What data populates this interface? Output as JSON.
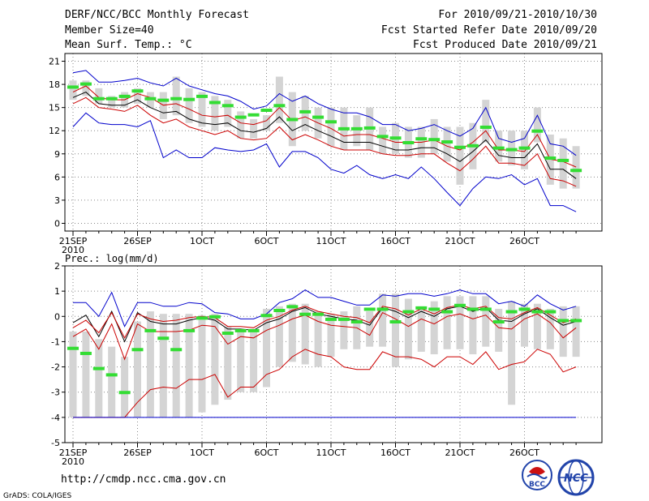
{
  "header": {
    "title": "DERF/NCC/BCC Monthly Forecast",
    "member_size": "Member Size=40",
    "variable": "Mean Surf. Temp.: °C",
    "forecast_period": "For 2010/09/21-2010/10/30",
    "refer_date": "Fcst Started Refer Date 2010/09/20",
    "produced_date": "Fcst Produced Date 2010/09/21"
  },
  "footer": {
    "url": "http://cmdp.ncc.cma.gov.cn",
    "credit": "GrADS: COLA/IGES",
    "logo_bcc_text": "BCC",
    "logo_ncc_text": "NCC"
  },
  "colors": {
    "max_line": "#0000cc",
    "min_line": "#0000cc",
    "spread_line": "#cc0000",
    "mean_line": "#000000",
    "box": "#d4d4d4",
    "marker": "#33dd33",
    "grid": "#888888"
  },
  "x_axis": {
    "tick_labels": [
      "21SEP",
      "26SEP",
      "1OCT",
      "6OCT",
      "11OCT",
      "16OCT",
      "21OCT",
      "26OCT"
    ],
    "tick_days": [
      0,
      5,
      10,
      15,
      20,
      25,
      30,
      35
    ],
    "year_label": "2010",
    "n_days": 40
  },
  "chart_data": [
    {
      "type": "line",
      "title": "Mean Surf. Temp.: °C",
      "ylim": [
        -1,
        22
      ],
      "yticks": [
        0,
        3,
        6,
        9,
        12,
        15,
        18,
        21
      ],
      "days": [
        0,
        1,
        2,
        3,
        4,
        5,
        6,
        7,
        8,
        9,
        10,
        11,
        12,
        13,
        14,
        15,
        16,
        17,
        18,
        19,
        20,
        21,
        22,
        23,
        24,
        25,
        26,
        27,
        28,
        29,
        30,
        31,
        32,
        33,
        34,
        35,
        36,
        37,
        38,
        39
      ],
      "series": [
        {
          "name": "max",
          "values": [
            19.5,
            19.8,
            18.3,
            18.3,
            18.5,
            18.8,
            18.2,
            17.8,
            18.8,
            17.8,
            17.3,
            16.8,
            16.5,
            15.8,
            14.8,
            15.2,
            16.8,
            15.8,
            16.5,
            15.5,
            14.8,
            14.3,
            14.3,
            13.8,
            12.8,
            12.8,
            12.0,
            12.3,
            12.8,
            12.0,
            11.3,
            12.3,
            15.0,
            11.0,
            10.5,
            11.0,
            14.0,
            10.3,
            10.0,
            8.8
          ]
        },
        {
          "name": "upper",
          "values": [
            17.0,
            17.8,
            16.3,
            16.0,
            16.0,
            16.8,
            16.3,
            15.3,
            15.5,
            14.8,
            14.0,
            13.8,
            14.0,
            13.0,
            12.8,
            13.3,
            15.0,
            13.3,
            13.8,
            13.0,
            12.3,
            11.3,
            11.5,
            11.5,
            11.0,
            10.5,
            10.5,
            10.5,
            10.8,
            10.0,
            9.5,
            10.5,
            12.0,
            9.5,
            9.5,
            9.3,
            11.5,
            8.3,
            8.0,
            7.3
          ]
        },
        {
          "name": "mean",
          "values": [
            16.3,
            17.0,
            15.5,
            15.3,
            15.3,
            16.0,
            15.0,
            14.3,
            14.5,
            13.5,
            13.0,
            12.8,
            13.0,
            12.0,
            11.8,
            12.3,
            13.8,
            12.0,
            12.8,
            12.0,
            11.3,
            10.5,
            10.5,
            10.5,
            10.0,
            9.5,
            9.5,
            9.8,
            9.8,
            9.0,
            8.0,
            9.3,
            10.8,
            8.8,
            8.5,
            8.5,
            10.3,
            7.0,
            7.0,
            5.8
          ]
        },
        {
          "name": "lower",
          "values": [
            15.5,
            16.3,
            15.0,
            14.8,
            14.5,
            15.3,
            14.0,
            13.0,
            13.5,
            12.5,
            12.0,
            11.5,
            12.0,
            11.0,
            10.8,
            11.0,
            12.5,
            10.8,
            11.5,
            10.8,
            10.0,
            9.5,
            9.5,
            9.5,
            9.0,
            8.8,
            8.8,
            9.0,
            9.0,
            7.8,
            6.8,
            8.3,
            10.0,
            7.8,
            7.8,
            7.5,
            9.0,
            5.8,
            5.5,
            4.8
          ]
        },
        {
          "name": "min",
          "values": [
            12.5,
            14.3,
            13.0,
            12.8,
            12.8,
            12.5,
            13.3,
            8.5,
            9.5,
            8.5,
            8.5,
            9.8,
            9.5,
            9.3,
            9.5,
            10.3,
            7.3,
            9.3,
            9.3,
            8.5,
            7.0,
            6.5,
            7.5,
            6.3,
            5.8,
            6.3,
            5.8,
            7.3,
            5.8,
            4.0,
            2.3,
            4.5,
            6.0,
            5.8,
            6.3,
            5.0,
            5.8,
            2.3,
            2.3,
            1.5
          ]
        }
      ],
      "boxes": {
        "low": [
          16.0,
          16.5,
          15.5,
          15.0,
          15.0,
          15.5,
          15.0,
          13.5,
          14.0,
          13.0,
          12.5,
          12.0,
          12.5,
          11.0,
          11.0,
          12.0,
          13.0,
          10.0,
          12.0,
          11.0,
          10.0,
          9.5,
          10.0,
          9.5,
          9.0,
          9.0,
          8.5,
          8.5,
          9.0,
          8.0,
          5.0,
          7.0,
          10.5,
          8.0,
          7.5,
          7.0,
          10.5,
          5.0,
          4.5,
          4.5
        ],
        "high": [
          18.5,
          18.5,
          17.5,
          16.5,
          17.0,
          17.5,
          17.0,
          17.0,
          19.0,
          17.5,
          17.0,
          16.5,
          16.0,
          14.5,
          13.5,
          14.0,
          19.0,
          17.0,
          16.5,
          15.0,
          15.0,
          15.0,
          14.0,
          15.0,
          12.5,
          13.0,
          12.5,
          12.5,
          13.5,
          12.5,
          12.5,
          13.0,
          16.0,
          12.0,
          12.0,
          12.0,
          15.0,
          11.5,
          11.0,
          10.0
        ]
      },
      "markers": [
        17.7,
        18.1,
        16.2,
        16.2,
        16.5,
        17.2,
        16.2,
        16.0,
        16.2,
        16.1,
        16.5,
        15.7,
        15.3,
        13.8,
        14.1,
        14.7,
        15.3,
        13.5,
        14.5,
        13.8,
        13.2,
        12.3,
        12.3,
        12.4,
        11.3,
        11.1,
        10.5,
        11.0,
        10.9,
        10.6,
        9.9,
        10.1,
        12.5,
        9.8,
        9.6,
        9.8,
        12.0,
        8.5,
        8.2,
        6.9
      ]
    },
    {
      "type": "line",
      "title": "Prec.: log(mm/d)",
      "ylim": [
        -5,
        2
      ],
      "yticks": [
        -5,
        -4,
        -3,
        -2,
        -1,
        0,
        1,
        2
      ],
      "days": [
        0,
        1,
        2,
        3,
        4,
        5,
        6,
        7,
        8,
        9,
        10,
        11,
        12,
        13,
        14,
        15,
        16,
        17,
        18,
        19,
        20,
        21,
        22,
        23,
        24,
        25,
        26,
        27,
        28,
        29,
        30,
        31,
        32,
        33,
        34,
        35,
        36,
        37,
        38,
        39
      ],
      "series": [
        {
          "name": "max",
          "values": [
            0.55,
            0.55,
            0.0,
            0.95,
            -0.4,
            0.55,
            0.55,
            0.4,
            0.4,
            0.55,
            0.5,
            0.15,
            0.1,
            -0.1,
            -0.1,
            0.1,
            0.55,
            0.7,
            1.05,
            0.75,
            0.75,
            0.6,
            0.45,
            0.45,
            0.85,
            0.8,
            0.9,
            0.9,
            0.8,
            0.9,
            1.05,
            0.9,
            0.9,
            0.5,
            0.6,
            0.4,
            0.85,
            0.5,
            0.25,
            0.4
          ]
        },
        {
          "name": "mean",
          "values": [
            -0.25,
            0.05,
            -0.8,
            0.2,
            -1.0,
            0.15,
            -0.2,
            -0.3,
            -0.3,
            -0.15,
            -0.05,
            -0.15,
            -0.5,
            -0.5,
            -0.55,
            -0.25,
            -0.1,
            0.2,
            0.35,
            0.1,
            0.0,
            -0.1,
            -0.15,
            -0.35,
            0.35,
            0.2,
            -0.05,
            0.2,
            0.0,
            0.3,
            0.4,
            0.2,
            0.35,
            -0.15,
            -0.2,
            0.1,
            0.3,
            -0.05,
            -0.35,
            -0.2
          ]
        },
        {
          "name": "upper",
          "values": [
            -0.45,
            -0.15,
            -0.65,
            0.15,
            -0.85,
            0.1,
            -0.1,
            -0.2,
            -0.15,
            -0.05,
            0.0,
            -0.05,
            -0.4,
            -0.4,
            -0.45,
            -0.15,
            0.0,
            0.25,
            0.4,
            0.2,
            0.1,
            0.0,
            -0.05,
            -0.25,
            0.4,
            0.3,
            0.05,
            0.3,
            0.1,
            0.35,
            0.45,
            0.3,
            0.4,
            -0.05,
            -0.1,
            0.15,
            0.35,
            0.05,
            -0.25,
            -0.1
          ]
        },
        {
          "name": "lower",
          "values": [
            -0.8,
            -0.5,
            -1.3,
            -0.3,
            -1.7,
            -0.3,
            -0.6,
            -0.6,
            -0.6,
            -0.55,
            -0.35,
            -0.4,
            -1.1,
            -0.8,
            -0.85,
            -0.55,
            -0.35,
            -0.1,
            0.05,
            -0.2,
            -0.35,
            -0.4,
            -0.45,
            -0.75,
            0.15,
            -0.1,
            -0.4,
            -0.1,
            -0.3,
            0.0,
            0.1,
            -0.1,
            0.05,
            -0.45,
            -0.5,
            -0.1,
            0.1,
            -0.25,
            -0.85,
            -0.45
          ]
        },
        {
          "name": "low_spread",
          "values": [
            -4.0,
            -4.0,
            -4.0,
            -4.0,
            -4.0,
            -3.4,
            -2.9,
            -2.8,
            -2.85,
            -2.5,
            -2.5,
            -2.3,
            -3.2,
            -2.8,
            -2.8,
            -2.3,
            -2.1,
            -1.6,
            -1.3,
            -1.5,
            -1.6,
            -2.0,
            -2.1,
            -2.1,
            -1.4,
            -1.6,
            -1.6,
            -1.7,
            -2.0,
            -1.6,
            -1.6,
            -1.9,
            -1.4,
            -2.1,
            -1.9,
            -1.8,
            -1.3,
            -1.5,
            -2.2,
            -2.0
          ]
        },
        {
          "name": "min",
          "values": [
            -4.0,
            -4.0,
            -4.0,
            -4.0,
            -4.0,
            -4.0,
            -4.0,
            -4.0,
            -4.0,
            -4.0,
            -4.0,
            -4.0,
            -4.0,
            -4.0,
            -4.0,
            -4.0,
            -4.0,
            -4.0,
            -4.0,
            -4.0,
            -4.0,
            -4.0,
            -4.0,
            -4.0,
            -4.0,
            -4.0,
            -4.0,
            -4.0,
            -4.0,
            -4.0,
            -4.0,
            -4.0,
            -4.0,
            -4.0,
            -4.0,
            -4.0,
            -4.0,
            -4.0,
            -4.0,
            -4.0
          ]
        }
      ],
      "boxes": {
        "low": [
          -4.0,
          -4.0,
          -4.0,
          -4.0,
          -4.0,
          -4.0,
          -4.0,
          -4.0,
          -4.0,
          -4.0,
          -3.8,
          -3.5,
          -3.3,
          -3.0,
          -3.0,
          -2.8,
          -2.0,
          -1.8,
          -1.9,
          -2.0,
          -1.6,
          -1.3,
          -1.3,
          -1.2,
          -1.2,
          -2.0,
          -1.7,
          -1.4,
          -1.5,
          -1.3,
          -1.3,
          -1.5,
          -1.2,
          -1.4,
          -3.5,
          -1.2,
          -1.3,
          -1.3,
          -1.6,
          -1.6
        ],
        "high": [
          -0.6,
          -0.6,
          -0.9,
          -1.2,
          -1.6,
          -0.2,
          0.2,
          0.1,
          0.1,
          0.1,
          0.05,
          0.1,
          -0.4,
          -0.6,
          -0.5,
          0.3,
          0.4,
          0.5,
          0.5,
          0.2,
          0.1,
          0.2,
          0.4,
          0.2,
          0.9,
          0.9,
          0.7,
          0.4,
          0.6,
          0.8,
          0.8,
          0.8,
          0.8,
          0.3,
          0.6,
          0.5,
          0.5,
          0.3,
          0.4,
          0.4
        ]
      },
      "markers": [
        -1.25,
        -1.45,
        -2.05,
        -2.3,
        -3.0,
        -1.3,
        -0.55,
        -0.85,
        -1.3,
        -0.55,
        -0.05,
        0.0,
        -0.65,
        -0.55,
        -0.55,
        0.05,
        0.25,
        0.4,
        0.1,
        0.1,
        -0.1,
        -0.1,
        -0.2,
        0.3,
        0.3,
        -0.2,
        0.2,
        0.35,
        0.3,
        0.2,
        0.45,
        0.3,
        0.3,
        -0.2,
        0.2,
        0.3,
        0.2,
        0.2,
        -0.15,
        -0.15
      ]
    }
  ]
}
